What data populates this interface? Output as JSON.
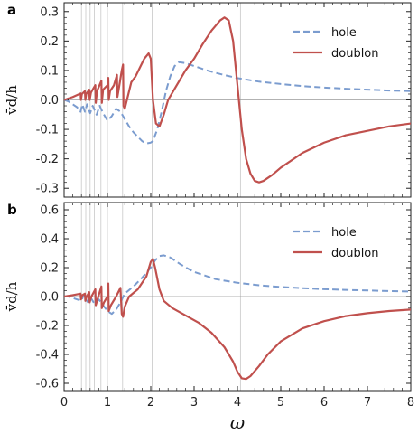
{
  "chart_data": [
    {
      "panel": "a",
      "type": "line",
      "ylabel": "v̄d/h",
      "xlim": [
        0,
        8
      ],
      "ylim": [
        -0.33,
        0.33
      ],
      "yticks": [
        -0.3,
        -0.2,
        -0.1,
        0.0,
        0.1,
        0.2,
        0.3
      ],
      "ytick_labels": [
        "-0.3",
        "-0.2",
        "-0.1",
        "0.0",
        "0.1",
        "0.2",
        "0.3"
      ],
      "vlines": [
        0.4,
        0.5,
        0.6,
        0.7,
        0.85,
        1.0,
        1.2,
        1.35,
        2.03,
        4.07
      ],
      "legend": {
        "position": "top-right",
        "entries": [
          "hole",
          "doublon"
        ]
      },
      "series": [
        {
          "name": "hole",
          "color": "#7b9ccf",
          "dash": true,
          "points": [
            [
              0,
              0
            ],
            [
              0.1,
              -0.005
            ],
            [
              0.2,
              -0.015
            ],
            [
              0.3,
              -0.025
            ],
            [
              0.38,
              -0.04
            ],
            [
              0.42,
              -0.015
            ],
            [
              0.48,
              -0.04
            ],
            [
              0.53,
              -0.015
            ],
            [
              0.6,
              -0.045
            ],
            [
              0.66,
              -0.02
            ],
            [
              0.75,
              -0.05
            ],
            [
              0.82,
              -0.02
            ],
            [
              0.9,
              -0.045
            ],
            [
              1.0,
              -0.07
            ],
            [
              1.1,
              -0.055
            ],
            [
              1.2,
              -0.03
            ],
            [
              1.3,
              -0.04
            ],
            [
              1.4,
              -0.065
            ],
            [
              1.5,
              -0.09
            ],
            [
              1.6,
              -0.11
            ],
            [
              1.7,
              -0.125
            ],
            [
              1.8,
              -0.14
            ],
            [
              1.9,
              -0.148
            ],
            [
              2.0,
              -0.145
            ],
            [
              2.05,
              -0.14
            ],
            [
              2.15,
              -0.1
            ],
            [
              2.25,
              -0.04
            ],
            [
              2.35,
              0.03
            ],
            [
              2.45,
              0.08
            ],
            [
              2.55,
              0.115
            ],
            [
              2.65,
              0.128
            ],
            [
              2.8,
              0.125
            ],
            [
              3.0,
              0.115
            ],
            [
              3.3,
              0.1
            ],
            [
              3.6,
              0.088
            ],
            [
              4.0,
              0.074
            ],
            [
              4.5,
              0.062
            ],
            [
              5.0,
              0.054
            ],
            [
              5.5,
              0.047
            ],
            [
              6.0,
              0.042
            ],
            [
              6.5,
              0.038
            ],
            [
              7.0,
              0.035
            ],
            [
              7.5,
              0.032
            ],
            [
              8.0,
              0.03
            ]
          ]
        },
        {
          "name": "doublon",
          "color": "#c0504d",
          "dash": false,
          "points": [
            [
              0,
              0
            ],
            [
              0.2,
              0.01
            ],
            [
              0.38,
              0.022
            ],
            [
              0.39,
              0.0
            ],
            [
              0.41,
              0.02
            ],
            [
              0.48,
              0.03
            ],
            [
              0.49,
              0.0
            ],
            [
              0.51,
              0.02
            ],
            [
              0.58,
              0.035
            ],
            [
              0.59,
              0.0
            ],
            [
              0.62,
              0.025
            ],
            [
              0.72,
              0.05
            ],
            [
              0.73,
              -0.01
            ],
            [
              0.76,
              0.03
            ],
            [
              0.86,
              0.065
            ],
            [
              0.87,
              -0.01
            ],
            [
              0.9,
              0.035
            ],
            [
              1.0,
              0.05
            ],
            [
              1.02,
              0.075
            ],
            [
              1.03,
              0.0
            ],
            [
              1.06,
              0.03
            ],
            [
              1.15,
              0.05
            ],
            [
              1.22,
              0.085
            ],
            [
              1.23,
              0.01
            ],
            [
              1.27,
              0.045
            ],
            [
              1.33,
              0.1
            ],
            [
              1.36,
              0.12
            ],
            [
              1.37,
              -0.02
            ],
            [
              1.4,
              -0.03
            ],
            [
              1.45,
              0.0
            ],
            [
              1.55,
              0.06
            ],
            [
              1.65,
              0.08
            ],
            [
              1.75,
              0.11
            ],
            [
              1.85,
              0.14
            ],
            [
              1.95,
              0.158
            ],
            [
              2.0,
              0.14
            ],
            [
              2.05,
              0.0
            ],
            [
              2.12,
              -0.08
            ],
            [
              2.2,
              -0.09
            ],
            [
              2.3,
              -0.05
            ],
            [
              2.4,
              0.0
            ],
            [
              2.6,
              0.05
            ],
            [
              2.8,
              0.1
            ],
            [
              3.0,
              0.14
            ],
            [
              3.2,
              0.19
            ],
            [
              3.4,
              0.235
            ],
            [
              3.6,
              0.27
            ],
            [
              3.7,
              0.28
            ],
            [
              3.8,
              0.27
            ],
            [
              3.9,
              0.2
            ],
            [
              4.0,
              0.05
            ],
            [
              4.1,
              -0.1
            ],
            [
              4.2,
              -0.2
            ],
            [
              4.3,
              -0.25
            ],
            [
              4.4,
              -0.275
            ],
            [
              4.5,
              -0.28
            ],
            [
              4.6,
              -0.275
            ],
            [
              4.8,
              -0.255
            ],
            [
              5.0,
              -0.23
            ],
            [
              5.5,
              -0.18
            ],
            [
              6.0,
              -0.145
            ],
            [
              6.5,
              -0.12
            ],
            [
              7.0,
              -0.105
            ],
            [
              7.5,
              -0.09
            ],
            [
              8.0,
              -0.08
            ]
          ]
        }
      ]
    },
    {
      "panel": "b",
      "type": "line",
      "ylabel": "v̄d/h",
      "xlabel": "ω",
      "xlim": [
        0,
        8
      ],
      "ylim": [
        -0.65,
        0.65
      ],
      "xticks": [
        0,
        1,
        2,
        3,
        4,
        5,
        6,
        7,
        8
      ],
      "xtick_labels": [
        "0",
        "1",
        "2",
        "3",
        "4",
        "5",
        "6",
        "7",
        "8"
      ],
      "yticks": [
        -0.6,
        -0.4,
        -0.2,
        0.0,
        0.2,
        0.4,
        0.6
      ],
      "ytick_labels": [
        "-0.6",
        "-0.4",
        "-0.2",
        "0.0",
        "0.2",
        "0.4",
        "0.6"
      ],
      "vlines": [
        0.4,
        0.5,
        0.6,
        0.7,
        0.85,
        1.0,
        1.2,
        1.35,
        2.03,
        4.07
      ],
      "legend": {
        "position": "top-right",
        "entries": [
          "hole",
          "doublon"
        ]
      },
      "series": [
        {
          "name": "hole",
          "color": "#7b9ccf",
          "dash": true,
          "points": [
            [
              0,
              0
            ],
            [
              0.1,
              0.0
            ],
            [
              0.2,
              -0.01
            ],
            [
              0.3,
              -0.02
            ],
            [
              0.4,
              -0.03
            ],
            [
              0.45,
              0.01
            ],
            [
              0.55,
              -0.04
            ],
            [
              0.6,
              0.0
            ],
            [
              0.7,
              -0.05
            ],
            [
              0.8,
              -0.02
            ],
            [
              0.9,
              -0.06
            ],
            [
              1.0,
              -0.1
            ],
            [
              1.1,
              -0.12
            ],
            [
              1.2,
              -0.09
            ],
            [
              1.3,
              -0.04
            ],
            [
              1.4,
              0.02
            ],
            [
              1.6,
              0.07
            ],
            [
              1.8,
              0.13
            ],
            [
              2.0,
              0.2
            ],
            [
              2.1,
              0.25
            ],
            [
              2.2,
              0.28
            ],
            [
              2.3,
              0.285
            ],
            [
              2.45,
              0.27
            ],
            [
              2.7,
              0.22
            ],
            [
              3.0,
              0.17
            ],
            [
              3.5,
              0.12
            ],
            [
              4.0,
              0.095
            ],
            [
              4.5,
              0.078
            ],
            [
              5.0,
              0.066
            ],
            [
              5.5,
              0.058
            ],
            [
              6.0,
              0.051
            ],
            [
              6.5,
              0.046
            ],
            [
              7.0,
              0.042
            ],
            [
              7.5,
              0.038
            ],
            [
              8.0,
              0.035
            ]
          ]
        },
        {
          "name": "doublon",
          "color": "#c0504d",
          "dash": false,
          "points": [
            [
              0,
              0
            ],
            [
              0.2,
              0.01
            ],
            [
              0.38,
              0.02
            ],
            [
              0.39,
              -0.02
            ],
            [
              0.42,
              0.01
            ],
            [
              0.48,
              0.02
            ],
            [
              0.49,
              -0.03
            ],
            [
              0.52,
              0.0
            ],
            [
              0.58,
              0.03
            ],
            [
              0.59,
              -0.04
            ],
            [
              0.63,
              0.0
            ],
            [
              0.72,
              0.05
            ],
            [
              0.73,
              -0.06
            ],
            [
              0.77,
              -0.02
            ],
            [
              0.86,
              0.07
            ],
            [
              0.87,
              -0.08
            ],
            [
              0.92,
              -0.04
            ],
            [
              1.0,
              0.0
            ],
            [
              1.02,
              0.09
            ],
            [
              1.03,
              -0.1
            ],
            [
              1.08,
              -0.06
            ],
            [
              1.2,
              0.0
            ],
            [
              1.3,
              0.06
            ],
            [
              1.33,
              -0.12
            ],
            [
              1.36,
              -0.14
            ],
            [
              1.4,
              -0.07
            ],
            [
              1.5,
              0.0
            ],
            [
              1.7,
              0.05
            ],
            [
              1.9,
              0.14
            ],
            [
              2.0,
              0.24
            ],
            [
              2.05,
              0.26
            ],
            [
              2.1,
              0.2
            ],
            [
              2.2,
              0.05
            ],
            [
              2.3,
              -0.03
            ],
            [
              2.5,
              -0.08
            ],
            [
              2.8,
              -0.13
            ],
            [
              3.1,
              -0.18
            ],
            [
              3.4,
              -0.25
            ],
            [
              3.7,
              -0.35
            ],
            [
              3.9,
              -0.45
            ],
            [
              4.0,
              -0.52
            ],
            [
              4.1,
              -0.565
            ],
            [
              4.2,
              -0.57
            ],
            [
              4.3,
              -0.55
            ],
            [
              4.5,
              -0.48
            ],
            [
              4.7,
              -0.4
            ],
            [
              5.0,
              -0.31
            ],
            [
              5.5,
              -0.22
            ],
            [
              6.0,
              -0.17
            ],
            [
              6.5,
              -0.135
            ],
            [
              7.0,
              -0.115
            ],
            [
              7.5,
              -0.1
            ],
            [
              8.0,
              -0.09
            ]
          ]
        }
      ]
    }
  ]
}
